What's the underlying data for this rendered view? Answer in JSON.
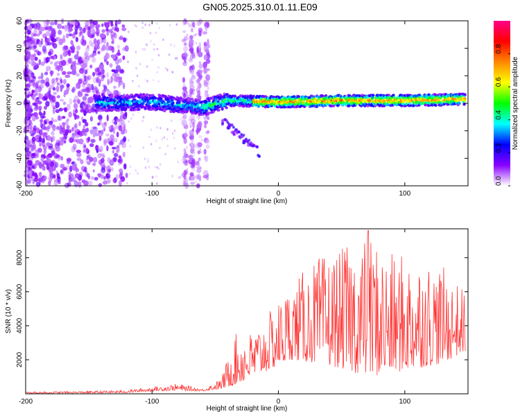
{
  "title": "GN05.2025.310.01.11.E09",
  "chart_data": [
    {
      "type": "heatmap",
      "name": "spectrogram",
      "xlabel": "Height of straight line (km)",
      "ylabel": "Frequency (Hz)",
      "xlim": [
        -200,
        150
      ],
      "ylim": [
        -60,
        60
      ],
      "xticks": [
        -200,
        -100,
        0,
        100
      ],
      "yticks": [
        60,
        40,
        20,
        0,
        -20,
        -40,
        -60
      ],
      "colorbar": {
        "label": "Normalized spectral amplitude",
        "range": [
          0,
          1
        ],
        "ticks": [
          0.0,
          0.2,
          0.4,
          0.6,
          0.8
        ],
        "stops": [
          "#ffffff",
          "#8800ff",
          "#0000ff",
          "#00ffff",
          "#00ff00",
          "#ffff00",
          "#ff8800",
          "#ff0000",
          "#ff0088"
        ]
      },
      "band": {
        "x_start": -145,
        "x_end": 148,
        "center_freq": [
          [
            -145,
            0
          ],
          [
            -100,
            1
          ],
          [
            -60,
            -3
          ],
          [
            -40,
            2
          ],
          [
            0,
            1
          ],
          [
            50,
            2
          ],
          [
            100,
            2
          ],
          [
            148,
            3
          ]
        ],
        "half_width_hz": 4
      },
      "noise_regions": [
        {
          "x_start": -200,
          "x_end": -120,
          "intensity": "dense"
        },
        {
          "x_start": -75,
          "x_end": -55,
          "intensity": "streaks"
        }
      ]
    },
    {
      "type": "line",
      "name": "snr",
      "xlabel": "Height of straight line (km)",
      "ylabel": "SNR (10 * v/v)",
      "xlim": [
        -200,
        150
      ],
      "ylim": [
        0,
        9700
      ],
      "xticks": [
        -200,
        -100,
        0,
        100
      ],
      "yticks": [
        2000,
        4000,
        6000,
        8000
      ],
      "color": "#ff3030",
      "envelope": [
        [
          -200,
          20,
          120
        ],
        [
          -150,
          40,
          160
        ],
        [
          -120,
          60,
          220
        ],
        [
          -100,
          150,
          400
        ],
        [
          -80,
          200,
          600
        ],
        [
          -60,
          150,
          300
        ],
        [
          -45,
          300,
          900
        ],
        [
          -35,
          500,
          3500
        ],
        [
          -20,
          1000,
          3700
        ],
        [
          -10,
          1300,
          4500
        ],
        [
          10,
          2000,
          6500
        ],
        [
          30,
          1800,
          8000
        ],
        [
          50,
          1500,
          8500
        ],
        [
          70,
          1000,
          9600
        ],
        [
          90,
          1200,
          8200
        ],
        [
          110,
          1500,
          8300
        ],
        [
          130,
          1800,
          7500
        ],
        [
          148,
          2500,
          6000
        ]
      ],
      "peak": {
        "x": 71,
        "y": 9600
      }
    }
  ]
}
